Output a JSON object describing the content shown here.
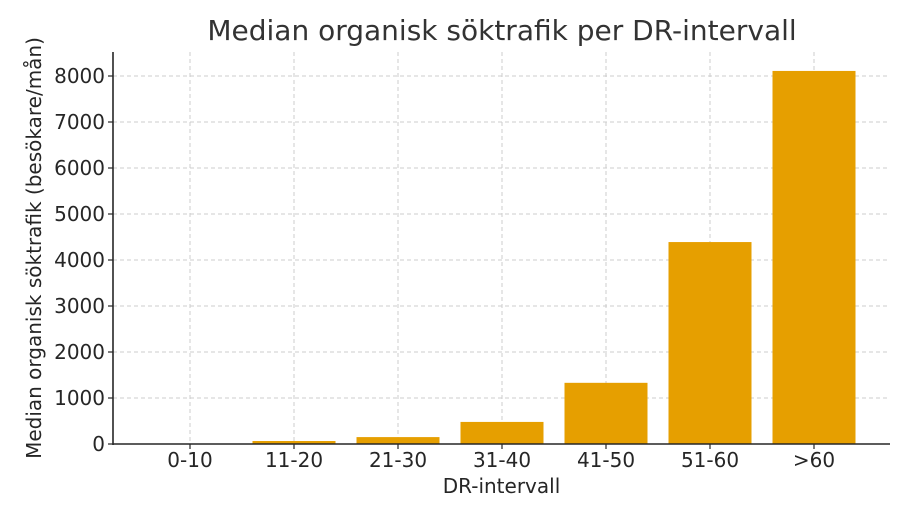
{
  "chart_data": {
    "type": "bar",
    "title": "Median organisk söktrafik per DR-intervall",
    "xlabel": "DR-intervall",
    "ylabel": "Median organisk söktrafik (besökare/mån)",
    "categories": [
      "0-10",
      "11-20",
      "21-30",
      "31-40",
      "41-50",
      "51-60",
      ">60"
    ],
    "values": [
      10,
      65,
      150,
      480,
      1330,
      4390,
      8110
    ],
    "ylim": [
      0,
      8500
    ],
    "yticks": [
      0,
      1000,
      2000,
      3000,
      4000,
      5000,
      6000,
      7000,
      8000
    ],
    "grid": true,
    "legend": null,
    "bar_color": "#E69F00"
  }
}
